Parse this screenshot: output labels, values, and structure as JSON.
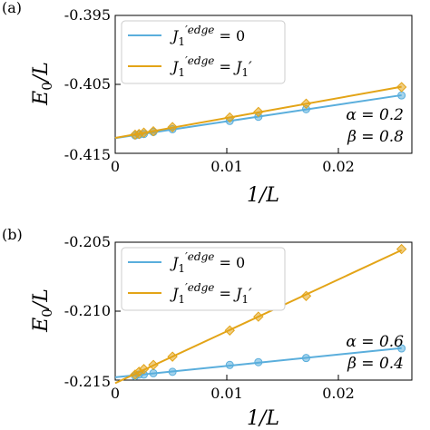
{
  "chart_data": [
    {
      "type": "line",
      "panel_label": "(a)",
      "xlabel": "1/L",
      "ylabel": "E0/L",
      "xlim": [
        0,
        0.0259
      ],
      "ylim": [
        -0.415,
        -0.395
      ],
      "x_ticks": [
        0,
        0.01,
        0.02
      ],
      "x_tick_labels": [
        "0",
        "0.01",
        "0.02"
      ],
      "y_ticks": [
        -0.415,
        -0.405,
        -0.395
      ],
      "y_tick_labels": [
        "-0.415",
        "-0.405",
        "-0.395"
      ],
      "legend_position": "top-left",
      "annotations": [
        "α = 0.2",
        "β = 0.8"
      ],
      "series": [
        {
          "name": "J1'edge = 0",
          "color": "#5aaedc",
          "marker": "circle",
          "x": [
            0.00174,
            0.00208,
            0.0025,
            0.00333,
            0.005,
            0.01,
            0.0125,
            0.01667,
            0.025
          ],
          "y": [
            -0.4124,
            -0.4123,
            -0.4122,
            -0.4119,
            -0.4115,
            -0.4103,
            -0.4097,
            -0.4086,
            -0.4066
          ]
        },
        {
          "name": "J1'edge = J1'",
          "color": "#e3a417",
          "marker": "diamond",
          "x": [
            0.00174,
            0.00208,
            0.0025,
            0.00333,
            0.005,
            0.01,
            0.0125,
            0.01667,
            0.025
          ],
          "y": [
            -0.4123,
            -0.4122,
            -0.412,
            -0.4118,
            -0.4112,
            -0.4098,
            -0.409,
            -0.4078,
            -0.4054
          ]
        }
      ]
    },
    {
      "type": "line",
      "panel_label": "(b)",
      "xlabel": "1/L",
      "ylabel": "E0/L",
      "xlim": [
        0,
        0.0259
      ],
      "ylim": [
        -0.215,
        -0.205
      ],
      "x_ticks": [
        0,
        0.01,
        0.02
      ],
      "x_tick_labels": [
        "0",
        "0.01",
        "0.02"
      ],
      "y_ticks": [
        -0.215,
        -0.21,
        -0.205
      ],
      "y_tick_labels": [
        "-0.215",
        "-0.210",
        "-0.205"
      ],
      "legend_position": "top-left",
      "annotations": [
        "α = 0.6",
        "β = 0.4"
      ],
      "series": [
        {
          "name": "J1'edge = 0",
          "color": "#5aaedc",
          "marker": "circle",
          "x": [
            0.00174,
            0.00208,
            0.0025,
            0.00333,
            0.005,
            0.01,
            0.0125,
            0.01667,
            0.025
          ],
          "y": [
            -0.2147,
            -0.2146,
            -0.2146,
            -0.2145,
            -0.2144,
            -0.2139,
            -0.2137,
            -0.2134,
            -0.2127
          ]
        },
        {
          "name": "J1'edge = J1'",
          "color": "#e3a417",
          "marker": "diamond",
          "x": [
            0.00174,
            0.00208,
            0.0025,
            0.00333,
            0.005,
            0.01,
            0.0125,
            0.01667,
            0.025
          ],
          "y": [
            -0.2146,
            -0.2144,
            -0.2142,
            -0.2139,
            -0.2133,
            -0.2114,
            -0.2104,
            -0.2089,
            -0.2055
          ]
        }
      ]
    }
  ]
}
